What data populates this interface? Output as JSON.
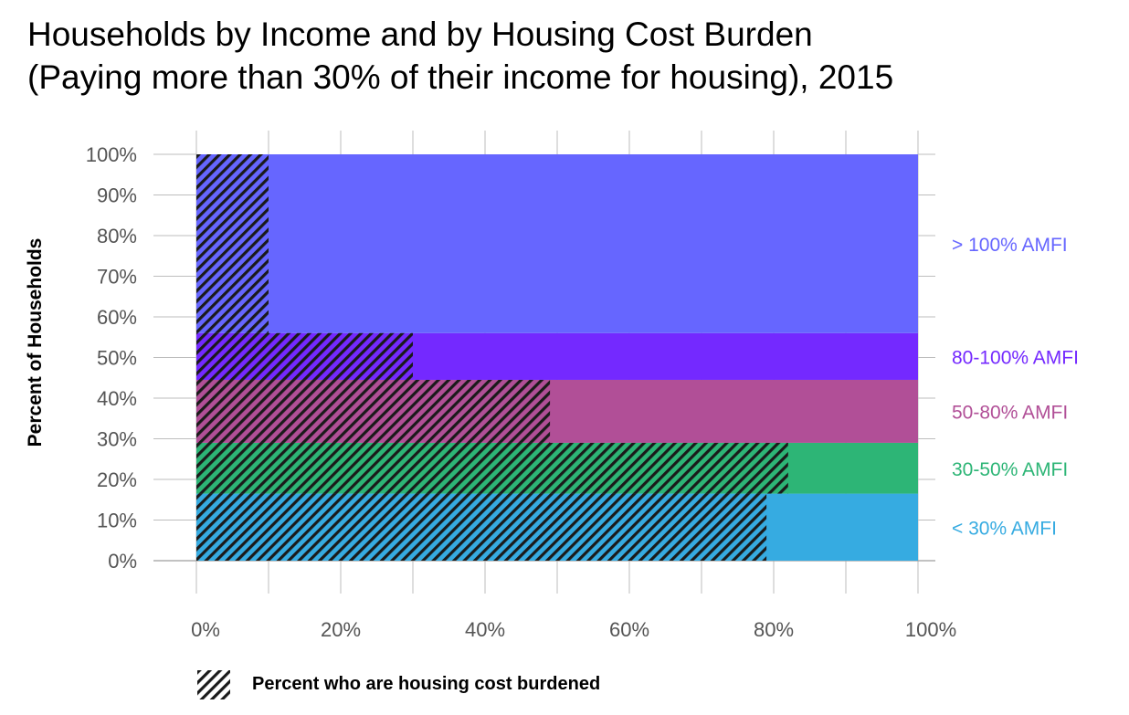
{
  "chart_data": {
    "type": "bar",
    "variant": "mekko-stacked-horizontal",
    "title": [
      "Households by Income and by Housing Cost Burden",
      "(Paying more than 30% of their income for housing), 2015"
    ],
    "ylabel": "Percent of Households",
    "xlabel": "",
    "x_ticks": [
      "0%",
      "20%",
      "40%",
      "60%",
      "80%",
      "100%"
    ],
    "y_ticks": [
      "0%",
      "10%",
      "20%",
      "30%",
      "40%",
      "50%",
      "60%",
      "70%",
      "80%",
      "90%",
      "100%"
    ],
    "xlim": [
      0,
      100
    ],
    "ylim": [
      0,
      100
    ],
    "grid": true,
    "legend": {
      "position": "bottom-left",
      "label": "Percent who are housing cost burdened",
      "pattern": "diagonal-hatch"
    },
    "series": [
      {
        "name": "< 30% AMFI",
        "share_of_households": 16.5,
        "percent_cost_burdened": 79,
        "color": "#36ABE1"
      },
      {
        "name": "30-50% AMFI",
        "share_of_households": 12.5,
        "percent_cost_burdened": 82,
        "color": "#2DB576"
      },
      {
        "name": "50-80% AMFI",
        "share_of_households": 15.5,
        "percent_cost_burdened": 49,
        "color": "#B14F97"
      },
      {
        "name": "80-100% AMFI",
        "share_of_households": 11.5,
        "percent_cost_burdened": 30,
        "color": "#7429FF"
      },
      {
        "name": "> 100% AMFI",
        "share_of_households": 44,
        "percent_cost_burdened": 10,
        "color": "#6666FF"
      }
    ]
  }
}
